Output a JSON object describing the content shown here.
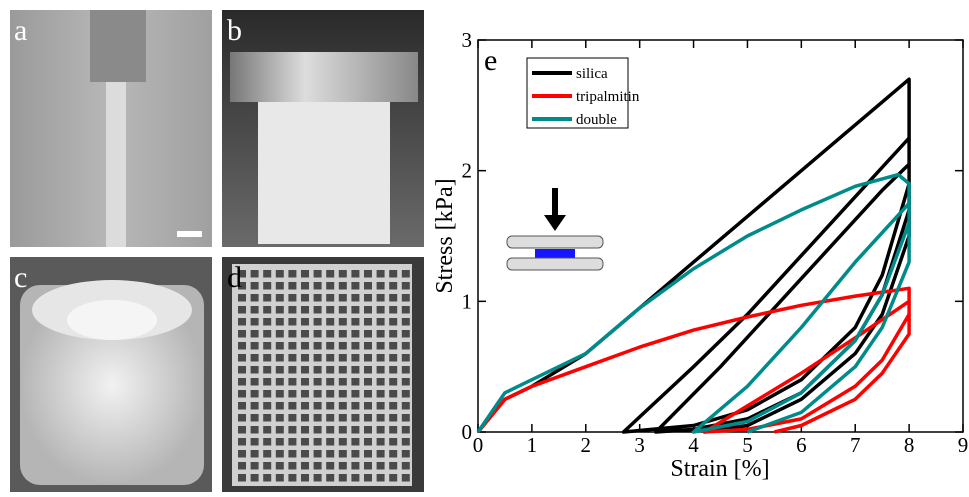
{
  "panels": [
    {
      "label": "a"
    },
    {
      "label": "b"
    },
    {
      "label": "c"
    },
    {
      "label": "d"
    }
  ],
  "chart_data": {
    "type": "line",
    "panel_label": "e",
    "x_label": "Strain [%]",
    "y_label": "Stress [kPa]",
    "xlim": [
      0,
      9
    ],
    "ylim": [
      0,
      3
    ],
    "xticks": [
      0,
      1,
      2,
      3,
      4,
      5,
      6,
      7,
      8,
      9
    ],
    "yticks": [
      0,
      1,
      2,
      3
    ],
    "series": [
      {
        "name": "silica",
        "color": "#000000",
        "x": [
          0,
          0.5,
          1,
          2,
          3,
          4,
          5,
          6,
          7,
          8,
          8,
          8,
          7.5,
          7,
          6,
          5,
          4,
          2.7,
          4,
          5,
          6,
          7,
          8,
          8,
          7.5,
          7,
          6,
          5,
          4,
          3.3,
          4.5,
          5.5,
          6.5,
          7.5,
          8,
          8,
          7.5,
          7,
          6,
          5,
          4.2
        ],
        "values": [
          0,
          0.25,
          0.35,
          0.6,
          0.95,
          1.3,
          1.65,
          2.0,
          2.35,
          2.7,
          2.7,
          1.9,
          1.2,
          0.8,
          0.4,
          0.17,
          0.05,
          0,
          0.5,
          0.9,
          1.35,
          1.8,
          2.25,
          1.7,
          1.05,
          0.7,
          0.3,
          0.1,
          0.02,
          0,
          0.5,
          0.95,
          1.4,
          1.85,
          2.05,
          1.5,
          0.9,
          0.6,
          0.25,
          0.05,
          0
        ]
      },
      {
        "name": "tripalmitin",
        "color": "#ff0000",
        "x": [
          0,
          0.5,
          1,
          2,
          3,
          4,
          5,
          6,
          7,
          8,
          8,
          7.5,
          7,
          6,
          5,
          4.2,
          5,
          6,
          7,
          8,
          8,
          7.5,
          7,
          6,
          5.5
        ],
        "values": [
          0,
          0.25,
          0.35,
          0.5,
          0.65,
          0.78,
          0.88,
          0.97,
          1.04,
          1.1,
          0.9,
          0.55,
          0.35,
          0.1,
          0.02,
          0,
          0.2,
          0.45,
          0.72,
          1.0,
          0.75,
          0.45,
          0.25,
          0.05,
          0
        ]
      },
      {
        "name": "double",
        "color": "#008b8b",
        "x": [
          0,
          0.5,
          1,
          2,
          3,
          4,
          5,
          6,
          7,
          7.8,
          8,
          8,
          7.5,
          7,
          6,
          5,
          4,
          5,
          6,
          7,
          8,
          8,
          7.5,
          7,
          6,
          5
        ],
        "values": [
          0,
          0.3,
          0.4,
          0.6,
          0.95,
          1.25,
          1.5,
          1.7,
          1.88,
          1.97,
          1.9,
          1.6,
          1.05,
          0.7,
          0.3,
          0.08,
          0,
          0.35,
          0.8,
          1.3,
          1.75,
          1.3,
          0.8,
          0.5,
          0.15,
          0
        ]
      }
    ]
  }
}
